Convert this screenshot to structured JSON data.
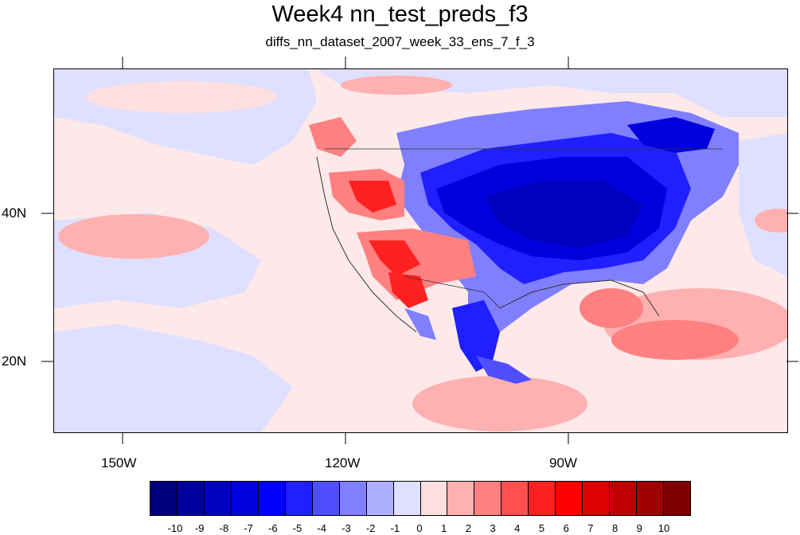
{
  "title": "Week4 nn_test_preds_f3",
  "subtitle": "diffs_nn_dataset_2007_week_33_ens_7_f_3",
  "axes": {
    "x_labels": [
      "150W",
      "120W",
      "90W"
    ],
    "y_labels": [
      "40N",
      "20N"
    ]
  },
  "colorbar": {
    "labels": [
      "-10",
      "-9",
      "-8",
      "-7",
      "-6",
      "-5",
      "-4",
      "-3",
      "-2",
      "-1",
      "0",
      "1",
      "2",
      "3",
      "4",
      "5",
      "6",
      "7",
      "8",
      "9",
      "10"
    ],
    "colors": [
      "#00007f",
      "#00009f",
      "#0000bf",
      "#0000df",
      "#0000ff",
      "#1f1fff",
      "#4f4fff",
      "#7f7fff",
      "#afafff",
      "#dfdfff",
      "#ffe0e0",
      "#ffb0b0",
      "#ff8080",
      "#ff5050",
      "#ff2020",
      "#ff0000",
      "#df0000",
      "#bf0000",
      "#9f0000",
      "#7f0000"
    ]
  },
  "chart_data": {
    "type": "heatmap",
    "title": "Week4 nn_test_preds_f3",
    "subtitle": "diffs_nn_dataset_2007_week_33_ens_7_f_3",
    "x_tick_labels": [
      "150W",
      "120W",
      "90W"
    ],
    "y_tick_labels": [
      "40N",
      "20N"
    ],
    "colorbar_range": [
      -10,
      10
    ],
    "colorbar_levels": [
      -10,
      -9,
      -8,
      -7,
      -6,
      -5,
      -4,
      -3,
      -2,
      -1,
      0,
      1,
      2,
      3,
      4,
      5,
      6,
      7,
      8,
      9,
      10
    ],
    "extent": {
      "lon": [
        -160,
        -62
      ],
      "lat": [
        10,
        59
      ]
    }
  }
}
